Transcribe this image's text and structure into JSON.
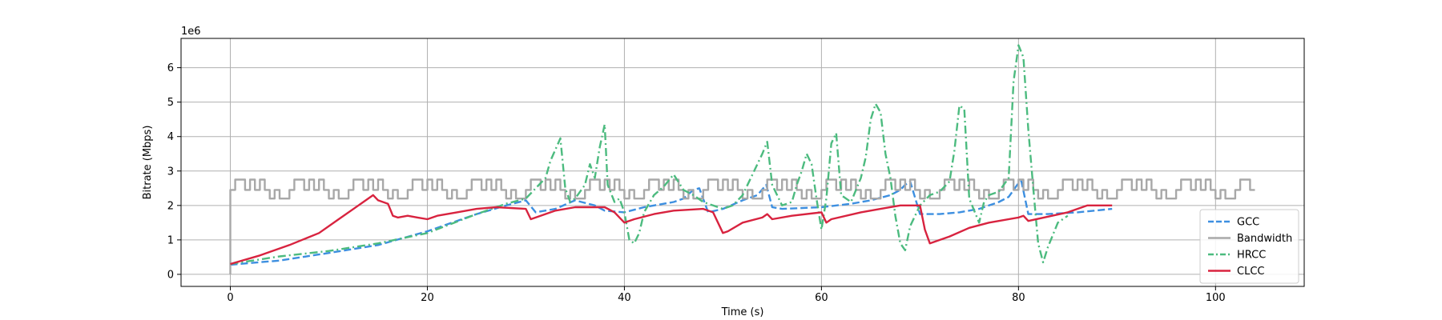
{
  "chart_data": {
    "type": "line",
    "title": "",
    "xlabel": "Time (s)",
    "ylabel": "Bitrate (Mbps)",
    "y_offset_text": "1e6",
    "xlim": [
      -5,
      109
    ],
    "ylim": [
      -350000,
      6850000
    ],
    "x_ticks": [
      0,
      20,
      40,
      60,
      80,
      100
    ],
    "x_tick_labels": [
      "0",
      "20",
      "40",
      "60",
      "80",
      "100"
    ],
    "y_ticks": [
      0,
      1000000,
      2000000,
      3000000,
      4000000,
      5000000,
      6000000
    ],
    "y_tick_labels": [
      "0",
      "1",
      "2",
      "3",
      "4",
      "5",
      "6"
    ],
    "grid": true,
    "legend_position": "lower-right",
    "series": [
      {
        "name": "GCC",
        "color": "#3d8fe0",
        "style": "dashed",
        "x": [
          0,
          5,
          10,
          15,
          20,
          25,
          28,
          30,
          31,
          33,
          35,
          37,
          38,
          40,
          42,
          45,
          46,
          47,
          47.6,
          48.5,
          50,
          52,
          53.5,
          54.4,
          55,
          56,
          60,
          63,
          65,
          67,
          68,
          68.5,
          69,
          70,
          72,
          74,
          76,
          78,
          79,
          80,
          80.3,
          81,
          83,
          86,
          89.5
        ],
        "values": [
          280000,
          400000,
          620000,
          850000,
          1250000,
          1750000,
          2000000,
          2150000,
          1800000,
          1900000,
          2150000,
          2000000,
          1850000,
          1800000,
          1950000,
          2100000,
          2200000,
          2450000,
          2500000,
          1800000,
          1900000,
          2150000,
          2300000,
          2600000,
          1950000,
          1900000,
          1950000,
          2050000,
          2150000,
          2300000,
          2450000,
          2600000,
          2700000,
          1750000,
          1750000,
          1800000,
          1900000,
          2100000,
          2250000,
          2650000,
          2700000,
          1750000,
          1750000,
          1800000,
          1900000
        ]
      },
      {
        "name": "Bandwidth",
        "color": "#a8a8a8",
        "style": "solid",
        "step": true,
        "x_start": 0,
        "x_end": 104,
        "step_width": 0.5,
        "period_steps": 12,
        "pattern": [
          2450000,
          2750000,
          2750000,
          2450000,
          2750000,
          2450000,
          2750000,
          2450000,
          2200000,
          2450000,
          2200000,
          2200000
        ]
      },
      {
        "name": "HRCC",
        "color": "#4cbb7f",
        "style": "dashdot",
        "x": [
          0,
          5,
          10,
          15,
          20,
          25,
          28,
          30,
          31,
          32,
          32.5,
          33.5,
          34,
          34.5,
          35,
          36,
          36.5,
          37,
          37.5,
          38,
          38.3,
          39,
          39.5,
          40,
          40.5,
          41,
          41.5,
          42,
          43,
          44,
          45,
          46,
          47,
          48,
          49,
          50,
          51,
          52,
          53,
          54,
          54.5,
          55,
          56,
          57,
          57.5,
          58,
          58.5,
          59,
          59.5,
          60,
          60.5,
          61,
          61.5,
          62,
          63,
          64,
          64.5,
          65,
          65.5,
          66,
          66.5,
          67,
          67.5,
          68,
          68.5,
          69,
          70,
          71,
          72,
          73,
          73.5,
          74,
          74.5,
          75,
          76,
          76.5,
          77,
          78,
          79,
          79.5,
          80,
          80.5,
          81,
          81.5,
          82,
          82.5,
          83,
          84,
          85
        ],
        "values": [
          300000,
          520000,
          680000,
          900000,
          1200000,
          1750000,
          2050000,
          2200000,
          2500000,
          2800000,
          3300000,
          3950000,
          2500000,
          2100000,
          2200000,
          2600000,
          3200000,
          2800000,
          3700000,
          4350000,
          2600000,
          2100000,
          2200000,
          1800000,
          1000000,
          900000,
          1200000,
          1800000,
          2300000,
          2550000,
          2900000,
          2450000,
          2300000,
          2100000,
          2000000,
          1900000,
          2000000,
          2300000,
          2900000,
          3500000,
          3850000,
          2600000,
          2000000,
          2100000,
          2600000,
          3000000,
          3500000,
          3200000,
          2200000,
          1300000,
          2200000,
          3800000,
          4100000,
          2300000,
          2100000,
          2800000,
          3400000,
          4500000,
          4950000,
          4700000,
          3500000,
          2800000,
          1700000,
          900000,
          700000,
          1400000,
          2000000,
          2300000,
          2400000,
          2700000,
          3600000,
          4900000,
          4800000,
          2200000,
          1500000,
          2100000,
          2300000,
          2400000,
          2800000,
          5600000,
          6650000,
          6300000,
          4200000,
          2500000,
          900000,
          350000,
          800000,
          1500000,
          1700000
        ]
      },
      {
        "name": "CLCC",
        "color": "#d8233f",
        "style": "solid",
        "x": [
          0,
          3,
          6,
          9,
          11,
          13,
          14.5,
          15,
          16,
          16.5,
          17,
          18,
          19,
          20,
          21,
          23,
          25,
          27,
          30,
          30.5,
          31,
          33,
          35,
          38,
          39,
          40,
          41,
          43,
          45,
          48,
          49,
          50,
          50.5,
          52,
          54,
          54.5,
          55,
          57,
          60,
          60.5,
          61,
          64,
          66,
          68,
          70,
          70.5,
          71,
          73,
          75,
          77,
          80,
          80.5,
          81,
          85,
          87,
          89.5
        ],
        "values": [
          300000,
          550000,
          850000,
          1200000,
          1600000,
          2000000,
          2300000,
          2150000,
          2050000,
          1700000,
          1650000,
          1700000,
          1650000,
          1600000,
          1700000,
          1800000,
          1900000,
          1950000,
          1900000,
          1600000,
          1650000,
          1850000,
          1950000,
          1950000,
          1800000,
          1500000,
          1600000,
          1750000,
          1850000,
          1900000,
          1800000,
          1200000,
          1250000,
          1500000,
          1650000,
          1750000,
          1600000,
          1700000,
          1800000,
          1500000,
          1600000,
          1800000,
          1900000,
          2000000,
          2000000,
          1300000,
          900000,
          1100000,
          1350000,
          1500000,
          1650000,
          1700000,
          1550000,
          1800000,
          2000000,
          2000000
        ]
      }
    ]
  }
}
